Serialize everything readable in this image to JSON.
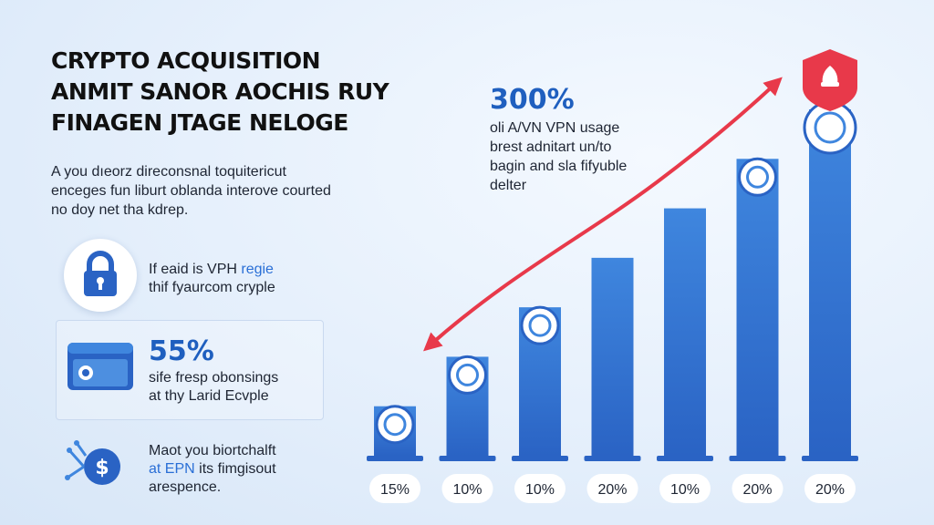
{
  "title_lines": [
    "CRYPTO ACQUISITION",
    "ANMIT SANOR AOCHIS RUY",
    "FINAGEN JTAGE NELOGE"
  ],
  "intro_lines": [
    "A you dıeorz direconsnal toquitericut",
    "enceges fun liburt oblanda interove courted",
    "no doy net tha kdrep."
  ],
  "feature1": {
    "icon": "lock-icon",
    "line1_plain": "If eaid is VPH ",
    "line1_accent": "regie",
    "line2": "thif fyaurcom cryple"
  },
  "feature2": {
    "icon": "wallet-card-icon",
    "stat": "55%",
    "line1": "sife fresp obonsings",
    "line2": "at thy Larid Ecvple"
  },
  "feature3": {
    "icon": "dollar-coin-icon",
    "line1": "Maot you biortchalft",
    "line2_accent": "at EPN",
    "line2_plain": " its fimgisout",
    "line3": "arespence."
  },
  "callout": {
    "stat": "300%",
    "lines": [
      "oli A/VN VPN usage",
      "brest adnitart un/to",
      "bagin and sla fifyuble",
      "delter"
    ]
  },
  "colors": {
    "bar_top": "#3f86de",
    "bar_bottom": "#2a63c4",
    "arrow": "#e8394a",
    "accent": "#1f5fbf",
    "shield": "#e8394a"
  },
  "chart_data": {
    "type": "bar",
    "categories": [
      "15%",
      "10%",
      "10%",
      "20%",
      "10%",
      "20%",
      "20%"
    ],
    "values": [
      1,
      2,
      3,
      4,
      5,
      6,
      7
    ],
    "bar_labels": [
      "15%",
      "10%",
      "10%",
      "20%",
      "10%",
      "20%",
      "20%"
    ],
    "bar_icons": [
      "arrows-icon",
      "person-laptop-icon",
      "qr-grid-icon",
      "",
      "",
      "handshake-icon",
      "crypto-emblem-icon"
    ],
    "title": "",
    "xlabel": "",
    "ylabel": "",
    "trend_arrow": "red curved arrow rising to the tallest bar",
    "grid": false,
    "legend": "none"
  }
}
